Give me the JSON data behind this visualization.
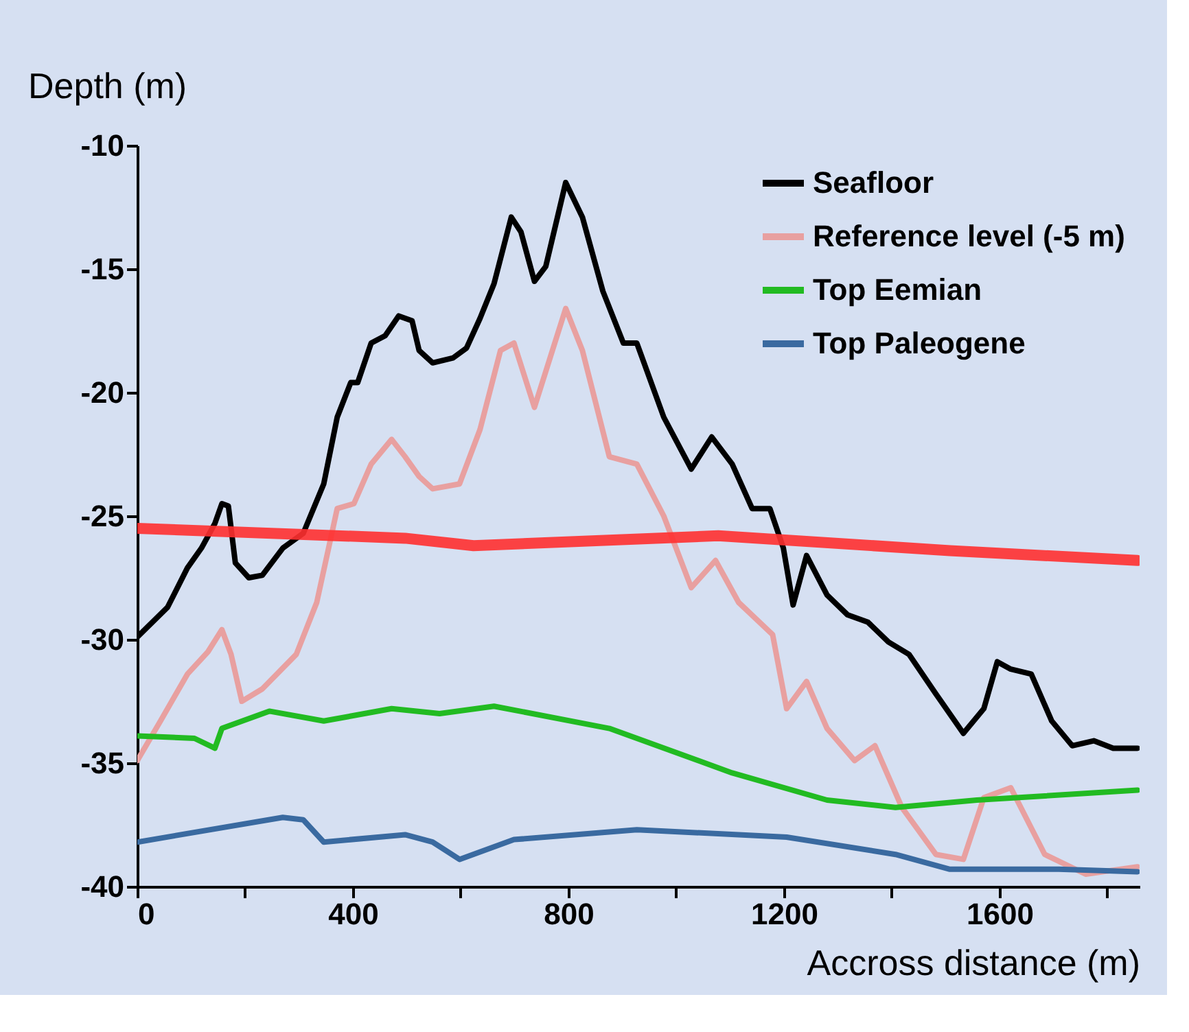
{
  "chart_data": {
    "type": "line",
    "xlabel": "Accross distance (m)",
    "ylabel": "Depth (m)",
    "xlim": [
      0,
      1860
    ],
    "ylim": [
      -40,
      -10
    ],
    "xticks": [
      0,
      {
        "value": 200,
        "label": null
      },
      400,
      {
        "value": 600,
        "label": null
      },
      800,
      {
        "value": 1000,
        "label": null
      },
      1200,
      {
        "value": 1400,
        "label": null
      },
      1600,
      {
        "value": 1800,
        "label": null
      }
    ],
    "yticks": [
      -40,
      -35,
      -30,
      -25,
      -20,
      -15,
      -10
    ],
    "grid": false,
    "legend": "top right",
    "line_style": "solid",
    "marker": "none",
    "series": [
      {
        "name": "Seafloor",
        "color": "#000000",
        "x": [
          0,
          56,
          93,
          119,
          144,
          157,
          169,
          182,
          207,
          232,
          270,
          308,
          346,
          371,
          396,
          409,
          434,
          460,
          485,
          510,
          523,
          548,
          586,
          611,
          636,
          662,
          694,
          712,
          737,
          758,
          795,
          826,
          864,
          902,
          927,
          977,
          1028,
          1066,
          1104,
          1141,
          1174,
          1199,
          1217,
          1242,
          1280,
          1318,
          1356,
          1394,
          1432,
          1482,
          1533,
          1571,
          1596,
          1621,
          1659,
          1697,
          1735,
          1775,
          1811,
          1856
        ],
        "values": [
          -29.9,
          -28.7,
          -27.1,
          -26.3,
          -25.3,
          -24.5,
          -24.6,
          -26.9,
          -27.5,
          -27.4,
          -26.3,
          -25.7,
          -23.7,
          -21.0,
          -19.6,
          -19.6,
          -18.0,
          -17.7,
          -16.9,
          -17.1,
          -18.3,
          -18.8,
          -18.6,
          -18.2,
          -17.0,
          -15.6,
          -12.9,
          -13.5,
          -15.5,
          -14.9,
          -11.5,
          -12.9,
          -15.9,
          -18.0,
          -18.0,
          -21.0,
          -23.1,
          -21.8,
          -22.9,
          -24.7,
          -24.7,
          -26.3,
          -28.6,
          -26.6,
          -28.2,
          -29.0,
          -29.3,
          -30.1,
          -30.6,
          -32.2,
          -33.8,
          -32.8,
          -30.9,
          -31.2,
          -31.4,
          -33.3,
          -34.3,
          -34.1,
          -34.4,
          -34.4
        ]
      },
      {
        "name": "Reference level (-5 m)",
        "color": "#e8a0a0",
        "x": [
          0,
          43,
          93,
          131,
          157,
          174,
          194,
          232,
          295,
          333,
          371,
          402,
          434,
          472,
          497,
          523,
          548,
          598,
          636,
          674,
          699,
          737,
          795,
          826,
          876,
          927,
          977,
          1028,
          1073,
          1116,
          1179,
          1205,
          1242,
          1280,
          1331,
          1369,
          1419,
          1482,
          1533,
          1571,
          1621,
          1684,
          1760,
          1856
        ],
        "values": [
          -34.9,
          -33.3,
          -31.4,
          -30.5,
          -29.6,
          -30.6,
          -32.5,
          -32.0,
          -30.6,
          -28.5,
          -24.7,
          -24.5,
          -22.9,
          -21.9,
          -22.6,
          -23.4,
          -23.9,
          -23.7,
          -21.5,
          -18.3,
          -18.0,
          -20.6,
          -16.6,
          -18.3,
          -22.6,
          -22.9,
          -25.0,
          -27.9,
          -26.8,
          -28.5,
          -29.8,
          -32.8,
          -31.7,
          -33.6,
          -34.9,
          -34.3,
          -36.8,
          -38.7,
          -38.9,
          -36.4,
          -36.0,
          -38.7,
          -39.5,
          -39.2
        ]
      },
      {
        "name": "Top Eemian",
        "color": "#22bb22",
        "x": [
          0,
          106,
          144,
          157,
          245,
          346,
          472,
          561,
          662,
          876,
          1104,
          1280,
          1407,
          1558,
          1856
        ],
        "values": [
          -33.9,
          -34.0,
          -34.4,
          -33.6,
          -32.9,
          -33.3,
          -32.8,
          -33.0,
          -32.7,
          -33.6,
          -35.4,
          -36.5,
          -36.8,
          -36.5,
          -36.1
        ]
      },
      {
        "name": "Top Paleogene",
        "color": "#3a6aa0",
        "x": [
          0,
          270,
          308,
          346,
          497,
          548,
          598,
          699,
          927,
          1205,
          1407,
          1508,
          1710,
          1856
        ],
        "values": [
          -38.2,
          -37.2,
          -37.3,
          -38.2,
          -37.9,
          -38.2,
          -38.9,
          -38.1,
          -37.7,
          -38.0,
          -38.7,
          -39.3,
          -39.3,
          -39.4
        ]
      },
      {
        "color": "#ff3030",
        "x": [
          0,
          497,
          624,
          1078,
          1508,
          1856
        ],
        "values": [
          -25.5,
          -25.9,
          -26.2,
          -25.8,
          -26.4,
          -26.8
        ]
      }
    ]
  }
}
